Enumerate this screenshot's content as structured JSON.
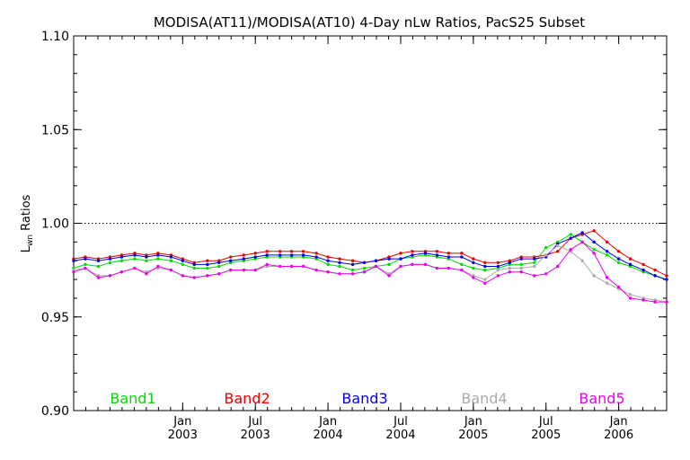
{
  "chart_data": {
    "type": "line",
    "title": "MODISA(AT11)/MODISA(AT10) 4-Day nLw Ratios, PacS25 Subset",
    "ylabel_main": "L",
    "ylabel_sub": "wn",
    "ylabel_rest": " Ratios",
    "ylim": [
      0.9,
      1.1
    ],
    "yticks": [
      {
        "value": 0.9,
        "label": "0.90"
      },
      {
        "value": 0.95,
        "label": "0.95"
      },
      {
        "value": 1.0,
        "label": "1.00"
      },
      {
        "value": 1.05,
        "label": "1.05"
      },
      {
        "value": 1.1,
        "label": "1.10"
      }
    ],
    "xlim": [
      2002.25,
      2006.33
    ],
    "xticks": [
      {
        "value": 2003.0,
        "month": "Jan",
        "year": "2003"
      },
      {
        "value": 2003.5,
        "month": "Jul",
        "year": "2003"
      },
      {
        "value": 2004.0,
        "month": "Jan",
        "year": "2004"
      },
      {
        "value": 2004.5,
        "month": "Jul",
        "year": "2004"
      },
      {
        "value": 2005.0,
        "month": "Jan",
        "year": "2005"
      },
      {
        "value": 2005.5,
        "month": "Jul",
        "year": "2005"
      },
      {
        "value": 2006.0,
        "month": "Jan",
        "year": "2006"
      }
    ],
    "reference_line": 1.0,
    "legend_placement": "bottom",
    "x": [
      2002.25,
      2002.33,
      2002.42,
      2002.5,
      2002.58,
      2002.67,
      2002.75,
      2002.83,
      2002.92,
      2003.0,
      2003.08,
      2003.17,
      2003.25,
      2003.33,
      2003.42,
      2003.5,
      2003.58,
      2003.67,
      2003.75,
      2003.83,
      2003.92,
      2004.0,
      2004.08,
      2004.17,
      2004.25,
      2004.33,
      2004.42,
      2004.5,
      2004.58,
      2004.67,
      2004.75,
      2004.83,
      2004.92,
      2005.0,
      2005.08,
      2005.17,
      2005.25,
      2005.33,
      2005.42,
      2005.5,
      2005.58,
      2005.67,
      2005.75,
      2005.83,
      2005.92,
      2006.0,
      2006.08,
      2006.17,
      2006.25,
      2006.33
    ],
    "series": [
      {
        "name": "Band1",
        "color": "#00dd00",
        "values": [
          0.976,
          0.978,
          0.977,
          0.979,
          0.98,
          0.981,
          0.98,
          0.981,
          0.98,
          0.978,
          0.976,
          0.976,
          0.977,
          0.979,
          0.98,
          0.981,
          0.982,
          0.982,
          0.982,
          0.982,
          0.981,
          0.978,
          0.977,
          0.975,
          0.976,
          0.977,
          0.978,
          0.981,
          0.982,
          0.983,
          0.982,
          0.981,
          0.978,
          0.976,
          0.975,
          0.976,
          0.978,
          0.978,
          0.979,
          0.987,
          0.99,
          0.994,
          0.99,
          0.986,
          0.983,
          0.979,
          0.977,
          0.974,
          0.972,
          0.97
        ]
      },
      {
        "name": "Band2",
        "color": "#ee0000",
        "values": [
          0.981,
          0.982,
          0.981,
          0.982,
          0.983,
          0.984,
          0.983,
          0.984,
          0.983,
          0.981,
          0.979,
          0.98,
          0.98,
          0.982,
          0.983,
          0.984,
          0.985,
          0.985,
          0.985,
          0.985,
          0.984,
          0.982,
          0.981,
          0.98,
          0.979,
          0.98,
          0.982,
          0.984,
          0.985,
          0.985,
          0.985,
          0.984,
          0.984,
          0.981,
          0.979,
          0.979,
          0.98,
          0.982,
          0.982,
          0.983,
          0.985,
          0.992,
          0.994,
          0.996,
          0.99,
          0.985,
          0.981,
          0.978,
          0.975,
          0.972
        ]
      },
      {
        "name": "Band3",
        "color": "#0000ee",
        "values": [
          0.98,
          0.981,
          0.98,
          0.981,
          0.982,
          0.983,
          0.982,
          0.983,
          0.982,
          0.98,
          0.978,
          0.978,
          0.979,
          0.98,
          0.981,
          0.982,
          0.983,
          0.983,
          0.983,
          0.983,
          0.982,
          0.98,
          0.979,
          0.978,
          0.979,
          0.98,
          0.981,
          0.981,
          0.983,
          0.984,
          0.983,
          0.982,
          0.982,
          0.979,
          0.977,
          0.977,
          0.979,
          0.981,
          0.981,
          0.982,
          0.989,
          0.992,
          0.995,
          0.99,
          0.985,
          0.981,
          0.978,
          0.975,
          0.972,
          0.97
        ]
      },
      {
        "name": "Band4",
        "color": "#aaaaaa",
        "values": [
          0.975,
          0.976,
          0.972,
          0.972,
          0.974,
          0.976,
          0.974,
          0.976,
          0.975,
          0.972,
          0.971,
          0.972,
          0.973,
          0.975,
          0.975,
          0.975,
          0.977,
          0.977,
          0.977,
          0.977,
          0.975,
          0.974,
          0.973,
          0.973,
          0.974,
          0.977,
          0.973,
          0.977,
          0.978,
          0.978,
          0.976,
          0.976,
          0.975,
          0.972,
          0.97,
          0.975,
          0.976,
          0.976,
          0.977,
          0.983,
          0.988,
          0.985,
          0.98,
          0.972,
          0.968,
          0.965,
          0.962,
          0.96,
          0.959,
          0.958
        ]
      },
      {
        "name": "Band5",
        "color": "#ee00ee",
        "values": [
          0.974,
          0.976,
          0.971,
          0.972,
          0.974,
          0.976,
          0.973,
          0.977,
          0.975,
          0.972,
          0.971,
          0.972,
          0.973,
          0.975,
          0.975,
          0.975,
          0.978,
          0.977,
          0.977,
          0.977,
          0.975,
          0.974,
          0.973,
          0.973,
          0.974,
          0.977,
          0.972,
          0.977,
          0.978,
          0.978,
          0.976,
          0.976,
          0.975,
          0.971,
          0.968,
          0.972,
          0.974,
          0.974,
          0.972,
          0.973,
          0.977,
          0.986,
          0.99,
          0.984,
          0.971,
          0.966,
          0.96,
          0.959,
          0.958,
          0.958
        ]
      }
    ]
  }
}
